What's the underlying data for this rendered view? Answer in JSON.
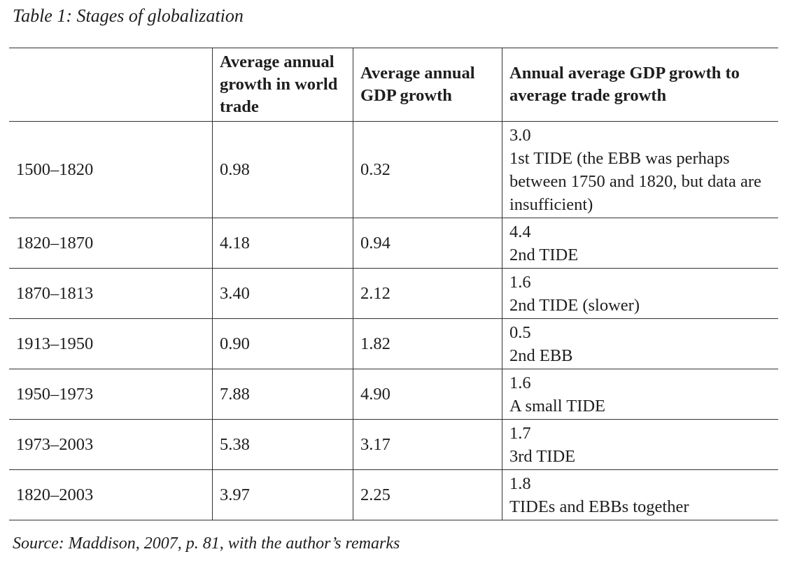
{
  "caption": "Table 1: Stages of globalization",
  "headers": [
    "",
    "Average annual growth in world trade",
    "Average annual GDP growth",
    "Annual average GDP growth to average trade growth"
  ],
  "rows": [
    {
      "period": "1500–1820",
      "trade": "0.98",
      "gdp": "0.32",
      "ratio": "3.0",
      "remark": "1st TIDE (the EBB was perhaps between 1750 and 1820, but data are insufficient)"
    },
    {
      "period": "1820–1870",
      "trade": "4.18",
      "gdp": "0.94",
      "ratio": "4.4",
      "remark": "2nd TIDE"
    },
    {
      "period": "1870–1813",
      "trade": "3.40",
      "gdp": "2.12",
      "ratio": "1.6",
      "remark": "2nd TIDE (slower)"
    },
    {
      "period": "1913–1950",
      "trade": "0.90",
      "gdp": "1.82",
      "ratio": "0.5",
      "remark": "2nd EBB"
    },
    {
      "period": "1950–1973",
      "trade": "7.88",
      "gdp": "4.90",
      "ratio": "1.6",
      "remark": "A small TIDE"
    },
    {
      "period": "1973–2003",
      "trade": "5.38",
      "gdp": "3.17",
      "ratio": "1.7",
      "remark": "3rd TIDE"
    },
    {
      "period": "1820–2003",
      "trade": "3.97",
      "gdp": "2.25",
      "ratio": "1.8",
      "remark": "TIDEs and EBBs together"
    }
  ],
  "source": "Source: Maddison, 2007, p. 81, with the author’s remarks"
}
